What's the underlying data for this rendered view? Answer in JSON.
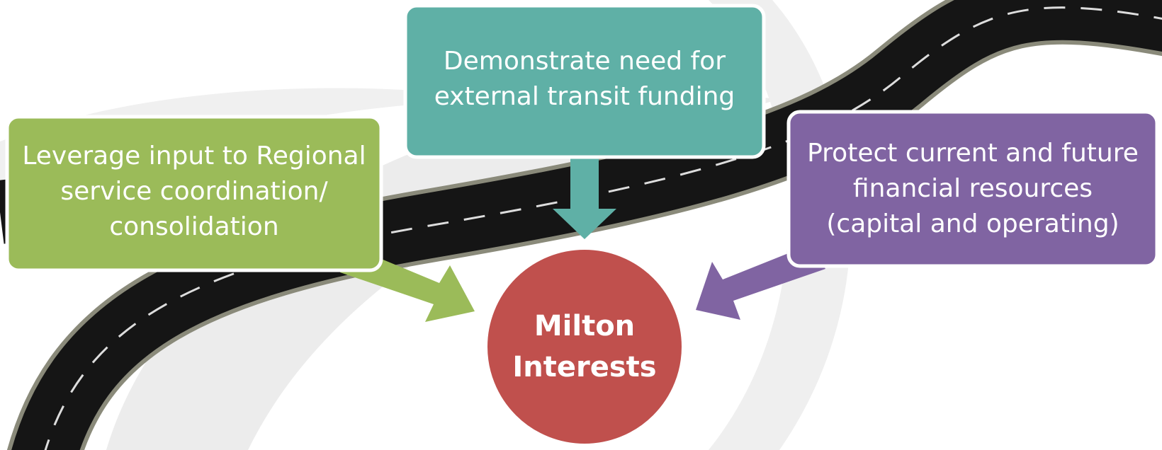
{
  "nodes": [
    {
      "lines": [
        "Demonstrate need for",
        "external transit funding"
      ]
    },
    {
      "lines": [
        "Leverage input to Regional",
        "service coordination/",
        "consolidation"
      ]
    },
    {
      "lines": [
        "Protect current and future",
        "financial resources",
        "(capital and operating)"
      ]
    },
    {
      "lines": [
        "Milton",
        "Interests"
      ]
    }
  ]
}
